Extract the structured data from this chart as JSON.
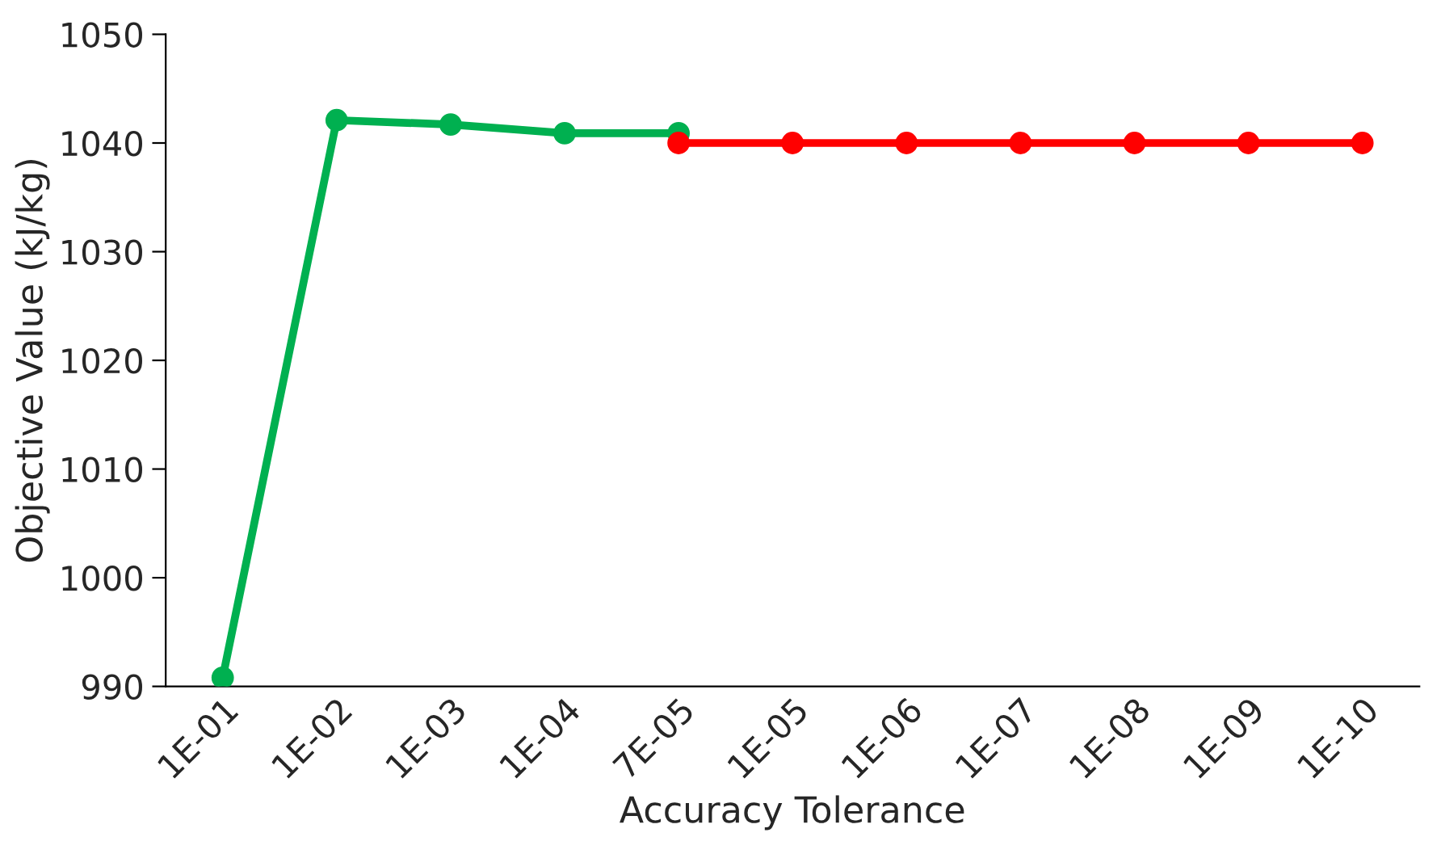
{
  "chart_data": {
    "type": "line",
    "xlabel": "Accuracy Tolerance",
    "ylabel": "Objective Value (kJ/kg)",
    "categories": [
      "1E-01",
      "1E-02",
      "1E-03",
      "1E-04",
      "7E-05",
      "1E-05",
      "1E-06",
      "1E-07",
      "1E-08",
      "1E-09",
      "1E-10"
    ],
    "series": [
      {
        "color": "#00b050",
        "values": [
          990.8,
          1042.1,
          1041.7,
          1040.9,
          1040.9,
          null,
          null,
          null,
          null,
          null,
          null
        ]
      },
      {
        "color": "#ff0000",
        "values": [
          null,
          null,
          null,
          null,
          1040.0,
          1040.0,
          1040.0,
          1040.0,
          1040.0,
          1040.0,
          1040.0
        ]
      }
    ],
    "ylim": [
      990,
      1050
    ],
    "yticks": [
      990,
      1000,
      1010,
      1020,
      1030,
      1040,
      1050
    ],
    "marker": "circle",
    "line_style": "solid",
    "grid": false,
    "legend": false
  }
}
